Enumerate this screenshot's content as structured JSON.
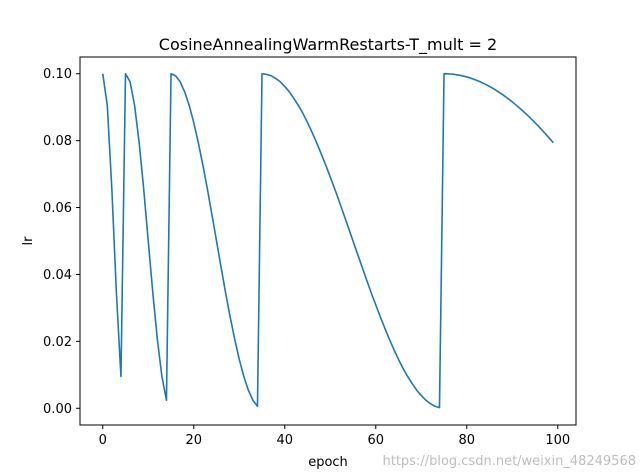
{
  "chart_data": {
    "type": "line",
    "title": "CosineAnnealingWarmRestarts-T_mult = 2",
    "xlabel": "epoch",
    "ylabel": "lr",
    "xlim": [
      -5,
      104
    ],
    "ylim": [
      -0.005,
      0.105
    ],
    "x_ticks": [
      0,
      20,
      40,
      60,
      80,
      100
    ],
    "x_tick_labels": [
      "0",
      "20",
      "40",
      "60",
      "80",
      "100"
    ],
    "y_ticks": [
      0.0,
      0.02,
      0.04,
      0.06,
      0.08,
      0.1
    ],
    "y_tick_labels": [
      "0.00",
      "0.02",
      "0.04",
      "0.06",
      "0.08",
      "0.10"
    ],
    "grid": false,
    "series": [
      {
        "color": "#1f77b4",
        "x": [
          0,
          1,
          2,
          3,
          4,
          5,
          6,
          7,
          8,
          9,
          10,
          11,
          12,
          13,
          14,
          15,
          16,
          17,
          18,
          19,
          20,
          21,
          22,
          23,
          24,
          25,
          26,
          27,
          28,
          29,
          30,
          31,
          32,
          33,
          34,
          35,
          36,
          37,
          38,
          39,
          40,
          41,
          42,
          43,
          44,
          45,
          46,
          47,
          48,
          49,
          50,
          51,
          52,
          53,
          54,
          55,
          56,
          57,
          58,
          59,
          60,
          61,
          62,
          63,
          64,
          65,
          66,
          67,
          68,
          69,
          70,
          71,
          72,
          73,
          74,
          75,
          76,
          77,
          78,
          79,
          80,
          81,
          82,
          83,
          84,
          85,
          86,
          87,
          88,
          89,
          90,
          91,
          92,
          93,
          94,
          95,
          96,
          97,
          98,
          99
        ],
        "y": [
          0.1,
          0.0905,
          0.0655,
          0.0345,
          0.0095,
          0.1,
          0.0976,
          0.0905,
          0.0794,
          0.0655,
          0.05,
          0.0345,
          0.0206,
          0.0095,
          0.0024,
          0.1,
          0.0994,
          0.0976,
          0.0946,
          0.0905,
          0.0854,
          0.0794,
          0.0727,
          0.0655,
          0.0578,
          0.05,
          0.0422,
          0.0345,
          0.0273,
          0.0206,
          0.0146,
          0.0095,
          0.0054,
          0.0024,
          0.0006,
          0.1,
          0.0998,
          0.0994,
          0.0986,
          0.0976,
          0.0962,
          0.0946,
          0.0926,
          0.0905,
          0.0881,
          0.0854,
          0.0825,
          0.0794,
          0.0761,
          0.0727,
          0.0691,
          0.0655,
          0.0617,
          0.0578,
          0.0539,
          0.05,
          0.0461,
          0.0422,
          0.0383,
          0.0345,
          0.0309,
          0.0273,
          0.0239,
          0.0206,
          0.0175,
          0.0146,
          0.0119,
          0.0095,
          0.0074,
          0.0054,
          0.0038,
          0.0024,
          0.0014,
          0.0006,
          0.0002,
          0.1,
          0.09996,
          0.09985,
          0.09965,
          0.09938,
          0.09904,
          0.09862,
          0.09812,
          0.09755,
          0.09691,
          0.0962,
          0.09541,
          0.09455,
          0.09362,
          0.09263,
          0.09157,
          0.09045,
          0.08926,
          0.08802,
          0.08672,
          0.08536,
          0.08394,
          0.08247,
          0.08096,
          0.07939
        ]
      }
    ]
  },
  "watermark": "https://blog.csdn.net/weixin_48249568"
}
